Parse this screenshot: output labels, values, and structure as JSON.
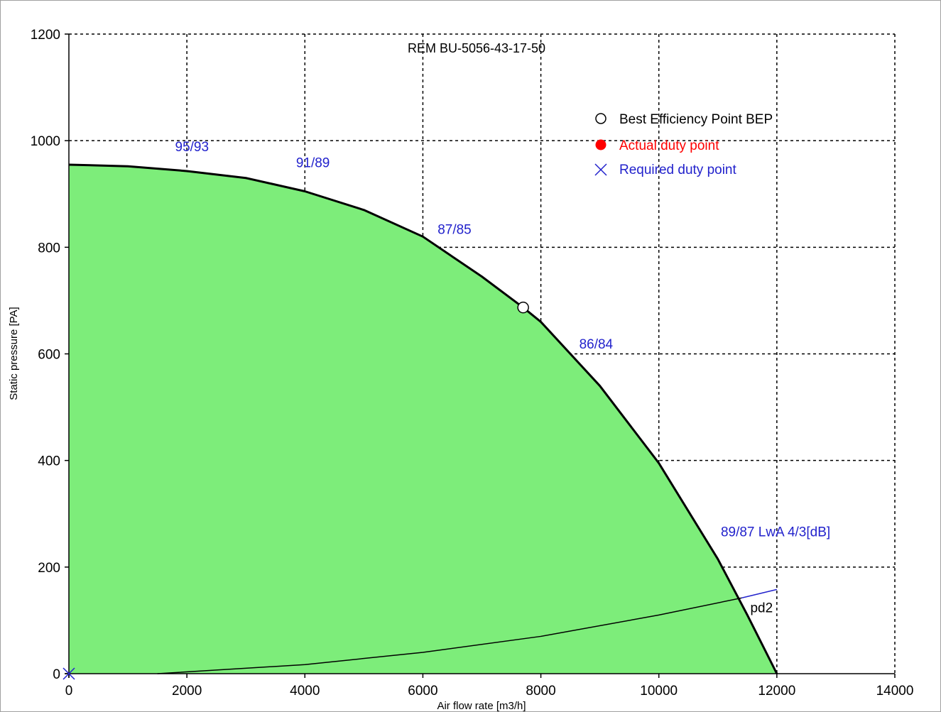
{
  "chart_data": {
    "type": "area",
    "title": "REM BU-5056-43-17-50",
    "xlabel": "Air flow rate [m3/h]",
    "ylabel": "Static pressure [PA]",
    "xlim": [
      0,
      14000
    ],
    "ylim": [
      0,
      1200
    ],
    "x_ticks": [
      0,
      2000,
      4000,
      6000,
      8000,
      10000,
      12000,
      14000
    ],
    "y_ticks": [
      0,
      200,
      400,
      600,
      800,
      1000,
      1200
    ],
    "x_tick_labels": [
      "0",
      "2000",
      "4000",
      "6000",
      "8000",
      "10000",
      "12000",
      "14000"
    ],
    "y_tick_labels": [
      "0",
      "200",
      "400",
      "600",
      "800",
      "1000",
      "1200"
    ],
    "grid": true,
    "legend_position": "top-right",
    "fan_curve": {
      "fill_color": "#7ded7a",
      "line_color": "#000000",
      "x": [
        0,
        1000,
        2000,
        3000,
        4000,
        5000,
        6000,
        7000,
        7700,
        8000,
        9000,
        10000,
        11000,
        11500,
        12000
      ],
      "y": [
        955,
        952,
        943,
        930,
        905,
        870,
        820,
        745,
        687,
        660,
        540,
        395,
        215,
        110,
        0
      ]
    },
    "system_curve": {
      "name": "pd2",
      "color": "#000000",
      "extension_color": "#2222cc",
      "x": [
        1500,
        4000,
        6000,
        8000,
        10000,
        11400
      ],
      "y": [
        0,
        17,
        40,
        70,
        110,
        142
      ],
      "extension_x": [
        11400,
        12000
      ],
      "extension_y": [
        142,
        158
      ]
    },
    "bep": {
      "x": 7700,
      "y": 687
    },
    "required_duty_point": {
      "x": 0,
      "y": 0
    },
    "sound_annotations": [
      {
        "text": "95/93",
        "x": 1800,
        "y": 980
      },
      {
        "text": "91/89",
        "x": 3850,
        "y": 950
      },
      {
        "text": "87/85",
        "x": 6250,
        "y": 825
      },
      {
        "text": "86/84",
        "x": 8650,
        "y": 610
      },
      {
        "text": "89/87 LwA 4/3[dB]",
        "x": 11050,
        "y": 258
      }
    ],
    "pd2_label": {
      "text": "pd2",
      "x": 11550,
      "y": 115
    },
    "legend": [
      {
        "label": "Best Efficiency Point BEP",
        "marker": "open-circle",
        "color": "#000000"
      },
      {
        "label": "Actual duty point",
        "marker": "filled-circle",
        "color": "#ff0000"
      },
      {
        "label": "Required duty point",
        "marker": "x",
        "color": "#2222cc"
      }
    ]
  }
}
